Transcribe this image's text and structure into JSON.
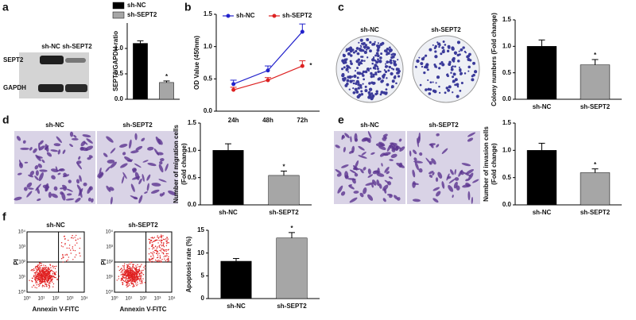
{
  "panel_letters": [
    "a",
    "b",
    "c",
    "d",
    "e",
    "f"
  ],
  "images": {
    "blot": {
      "columns": [
        "sh-NC",
        "sh-SEPT2"
      ],
      "rows": [
        "SEPT2",
        "GAPDH"
      ]
    },
    "colony": {
      "labels": [
        "sh-NC",
        "sh-SEPT2"
      ]
    },
    "migration": {
      "labels": [
        "sh-NC",
        "sh-SEPT2"
      ]
    },
    "invasion": {
      "labels": [
        "sh-NC",
        "sh-SEPT2"
      ]
    },
    "flow": {
      "labels": [
        "sh-NC",
        "sh-SEPT2"
      ],
      "xlabel": "Annexin V-FITC",
      "ylabel": "PI",
      "ticks": [
        "10⁰",
        "10¹",
        "10²",
        "10³",
        "10⁴"
      ]
    }
  },
  "chart_data": [
    {
      "type": "bar",
      "ylabel": [
        "SEPT2/GAPDH ratio"
      ],
      "categories": [
        "sh-NC",
        "sh-SEPT2"
      ],
      "values": [
        1.1,
        0.33
      ],
      "errors": [
        0.05,
        0.03
      ],
      "colors": [
        "#000000",
        "#a6a6a6"
      ],
      "legend": true,
      "significance": "*",
      "ylim": [
        0,
        1.5
      ],
      "yticks": [
        {
          "value": 0,
          "label": "0.0"
        },
        {
          "value": 0.5,
          "label": "0.5"
        },
        {
          "value": 1,
          "label": "1.0"
        }
      ]
    },
    {
      "type": "line",
      "ylabel": [
        "OD Value (450nm)"
      ],
      "categories": [
        "24h",
        "48h",
        "72h"
      ],
      "significance": "*",
      "series": [
        {
          "name": "sh-NC",
          "color": "#2222cc",
          "values": [
            0.42,
            0.63,
            1.23
          ],
          "errors": [
            0.06,
            0.07,
            0.12
          ]
        },
        {
          "name": "sh-SEPT2",
          "color": "#dd2222",
          "values": [
            0.33,
            0.48,
            0.7
          ],
          "errors": [
            0.04,
            0.04,
            0.08
          ]
        }
      ],
      "ylim": [
        0,
        1.5
      ],
      "yticks": [
        {
          "value": 0,
          "label": "0.0"
        },
        {
          "value": 0.5,
          "label": "0.5"
        },
        {
          "value": 1,
          "label": "1.0"
        },
        {
          "value": 1.5,
          "label": "1.5"
        }
      ]
    },
    {
      "type": "bar",
      "ylabel": [
        "Colony numbers (Fold change)"
      ],
      "categories": [
        "sh-NC",
        "sh-SEPT2"
      ],
      "values": [
        1.0,
        0.65
      ],
      "errors": [
        0.12,
        0.1
      ],
      "colors": [
        "#000000",
        "#a6a6a6"
      ],
      "significance": "*",
      "ylim": [
        0,
        1.5
      ],
      "yticks": [
        {
          "value": 0,
          "label": "0.0"
        },
        {
          "value": 0.5,
          "label": "0.5"
        },
        {
          "value": 1,
          "label": "1.0"
        },
        {
          "value": 1.5,
          "label": "1.5"
        }
      ]
    },
    {
      "type": "bar",
      "ylabel": [
        "Number of migration cells",
        "(Fold change)"
      ],
      "categories": [
        "sh-NC",
        "sh-SEPT2"
      ],
      "values": [
        1.0,
        0.54
      ],
      "errors": [
        0.12,
        0.08
      ],
      "colors": [
        "#000000",
        "#a6a6a6"
      ],
      "significance": "*",
      "ylim": [
        0,
        1.5
      ],
      "yticks": [
        {
          "value": 0,
          "label": "0.0"
        },
        {
          "value": 0.5,
          "label": "0.5"
        },
        {
          "value": 1,
          "label": "1.0"
        },
        {
          "value": 1.5,
          "label": "1.5"
        }
      ]
    },
    {
      "type": "bar",
      "ylabel": [
        "Number of invasion cells",
        "(Fold change)"
      ],
      "categories": [
        "sh-NC",
        "sh-SEPT2"
      ],
      "values": [
        1.0,
        0.59
      ],
      "errors": [
        0.13,
        0.07
      ],
      "colors": [
        "#000000",
        "#a6a6a6"
      ],
      "significance": "*",
      "ylim": [
        0,
        1.5
      ],
      "yticks": [
        {
          "value": 0,
          "label": "0.0"
        },
        {
          "value": 0.5,
          "label": "0.5"
        },
        {
          "value": 1,
          "label": "1.0"
        },
        {
          "value": 1.5,
          "label": "1.5"
        }
      ]
    },
    {
      "type": "bar",
      "ylabel": [
        "Apoptosis rate (%)"
      ],
      "categories": [
        "sh-NC",
        "sh-SEPT2"
      ],
      "values": [
        8.2,
        13.3
      ],
      "errors": [
        0.6,
        1.2
      ],
      "colors": [
        "#000000",
        "#a6a6a6"
      ],
      "significance": "*",
      "ylim": [
        0,
        15
      ],
      "yticks": [
        0,
        5,
        10,
        15
      ]
    }
  ]
}
